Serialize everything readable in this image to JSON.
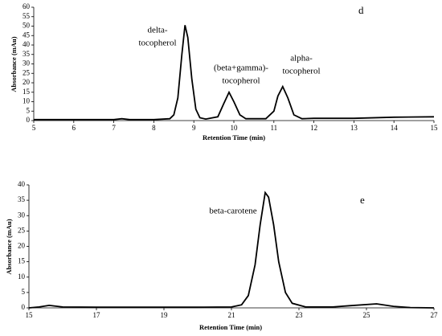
{
  "chart_data": [
    {
      "type": "line",
      "panel": "d",
      "x_label": "Retention Time (min)",
      "y_label": "Absorbance (mAu)",
      "xlim": [
        5,
        15
      ],
      "xticks": [
        5,
        6,
        7,
        8,
        9,
        10,
        11,
        12,
        13,
        14,
        15
      ],
      "ylim": [
        0,
        60
      ],
      "yticks": [
        0,
        5,
        10,
        15,
        20,
        25,
        30,
        35,
        40,
        45,
        50,
        55,
        60
      ],
      "annotations": [
        [
          "delta-",
          "tocopherol"
        ],
        [
          "(beta+gamma)-",
          "tocopherol"
        ],
        [
          "alpha-",
          "tocopherol"
        ]
      ],
      "color": "#000000",
      "x": [
        5,
        6,
        7,
        7.2,
        7.4,
        8,
        8.4,
        8.5,
        8.6,
        8.7,
        8.78,
        8.85,
        8.95,
        9.05,
        9.15,
        9.3,
        9.6,
        9.75,
        9.88,
        10.0,
        10.15,
        10.3,
        10.8,
        11.0,
        11.1,
        11.22,
        11.35,
        11.5,
        11.7,
        12,
        13,
        14,
        15
      ],
      "values": [
        0.5,
        0.5,
        0.5,
        1,
        0.5,
        0.5,
        1,
        3,
        12,
        35,
        50.5,
        44,
        22,
        6,
        1.5,
        0.8,
        2,
        9,
        15,
        10,
        3,
        1,
        1,
        5,
        13,
        18,
        12,
        3,
        1,
        1.2,
        1.2,
        1.8,
        2
      ]
    },
    {
      "type": "line",
      "panel": "e",
      "x_label": "Retention Time (min)",
      "y_label": "Absorbance (mAu)",
      "xlim": [
        15,
        27
      ],
      "xticks": [
        15,
        17,
        19,
        21,
        23,
        25,
        27
      ],
      "ylim": [
        0,
        40
      ],
      "yticks": [
        0,
        5,
        10,
        15,
        20,
        25,
        30,
        35,
        40
      ],
      "annotations": [
        [
          "beta-carotene"
        ]
      ],
      "color": "#000000",
      "x": [
        15,
        15.3,
        15.6,
        16,
        17,
        19,
        20,
        21,
        21.3,
        21.5,
        21.7,
        21.85,
        22.0,
        22.1,
        22.25,
        22.4,
        22.6,
        22.8,
        23.2,
        24,
        24.5,
        25.3,
        25.8,
        26.3,
        27
      ],
      "values": [
        0,
        0.3,
        0.8,
        0.3,
        0.2,
        0.2,
        0.2,
        0.3,
        1,
        4,
        14,
        27,
        37.5,
        36,
        27,
        15,
        5,
        1.5,
        0.3,
        0.3,
        0.7,
        1.3,
        0.5,
        0.1,
        0
      ]
    }
  ]
}
